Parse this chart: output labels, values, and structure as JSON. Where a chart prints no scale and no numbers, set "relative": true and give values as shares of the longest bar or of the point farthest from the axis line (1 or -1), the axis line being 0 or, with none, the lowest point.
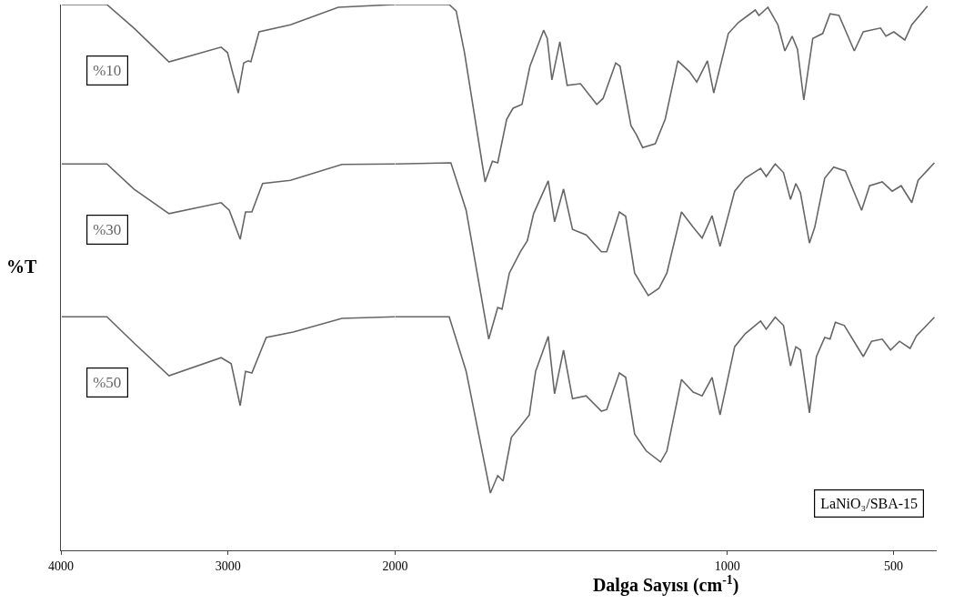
{
  "chart_data": [
    {
      "type": "line",
      "relative": true,
      "ylabel": "%T",
      "xlim": [
        4000,
        2000
      ],
      "xticks": [
        4000,
        3000,
        2000
      ],
      "marker": "none",
      "line_style": "solid",
      "series": [
        {
          "name": "%10",
          "color": "#666666",
          "x": [
            3995,
            3725,
            3563,
            3353,
            3041,
            3003,
            2970,
            2938,
            2906,
            2879,
            2863,
            2814,
            2626,
            2340,
            2000
          ],
          "values": [
            1.0,
            1.0,
            0.957,
            0.895,
            0.922,
            0.912,
            0.873,
            0.838,
            0.893,
            0.897,
            0.895,
            0.95,
            0.963,
            0.995,
            1.0
          ]
        },
        {
          "name": "%30",
          "color": "#666666",
          "x": [
            3995,
            3725,
            3563,
            3353,
            3041,
            2992,
            2927,
            2895,
            2857,
            2793,
            2626,
            2318,
            2000
          ],
          "values": [
            0.708,
            0.708,
            0.662,
            0.617,
            0.637,
            0.623,
            0.57,
            0.62,
            0.62,
            0.672,
            0.678,
            0.707,
            0.708
          ]
        },
        {
          "name": "%50",
          "color": "#666666",
          "x": [
            3995,
            3725,
            3563,
            3353,
            3041,
            2981,
            2927,
            2895,
            2857,
            2771,
            2609,
            2318,
            2000
          ],
          "values": [
            0.428,
            0.428,
            0.38,
            0.32,
            0.353,
            0.342,
            0.265,
            0.328,
            0.325,
            0.39,
            0.4,
            0.425,
            0.428
          ]
        }
      ]
    },
    {
      "type": "line",
      "relative": true,
      "xlabel": "Dalga Sayısı (cm$^{-1}$)",
      "xlim": [
        2000,
        370
      ],
      "xticks": [
        1000,
        500
      ],
      "marker": "none",
      "line_style": "solid",
      "annotations": [
        "LaNiO₃/SBA-15"
      ],
      "series": [
        {
          "color": "#666666",
          "x": [
            2000,
            1837,
            1816,
            1791,
            1729,
            1707,
            1691,
            1664,
            1645,
            1618,
            1594,
            1553,
            1542,
            1528,
            1504,
            1482,
            1442,
            1393,
            1374,
            1336,
            1323,
            1290,
            1274,
            1255,
            1217,
            1187,
            1149,
            1114,
            1092,
            1060,
            1041,
            997,
            967,
            916,
            905,
            878,
            848,
            827,
            805,
            789,
            770,
            743,
            713,
            691,
            664,
            618,
            591,
            539,
            523,
            499,
            466,
            445,
            398
          ],
          "values": [
            1.0,
            1.0,
            0.988,
            0.912,
            0.675,
            0.713,
            0.71,
            0.79,
            0.81,
            0.817,
            0.887,
            0.953,
            0.938,
            0.862,
            0.932,
            0.852,
            0.855,
            0.817,
            0.828,
            0.893,
            0.887,
            0.778,
            0.762,
            0.738,
            0.745,
            0.79,
            0.897,
            0.877,
            0.858,
            0.897,
            0.838,
            0.947,
            0.967,
            0.99,
            0.98,
            0.995,
            0.963,
            0.915,
            0.942,
            0.918,
            0.825,
            0.938,
            0.947,
            0.983,
            0.98,
            0.915,
            0.95,
            0.957,
            0.942,
            0.95,
            0.935,
            0.963,
            0.997
          ]
        },
        {
          "color": "#666666",
          "x": [
            2000,
            1832,
            1786,
            1718,
            1691,
            1678,
            1656,
            1623,
            1602,
            1583,
            1539,
            1520,
            1493,
            1466,
            1425,
            1379,
            1363,
            1325,
            1306,
            1279,
            1238,
            1206,
            1182,
            1138,
            1103,
            1076,
            1046,
            1022,
            978,
            946,
            900,
            883,
            856,
            831,
            810,
            794,
            780,
            753,
            737,
            707,
            680,
            645,
            596,
            572,
            534,
            504,
            477,
            445,
            426,
            377
          ],
          "values": [
            0.708,
            0.71,
            0.623,
            0.387,
            0.445,
            0.442,
            0.508,
            0.547,
            0.567,
            0.617,
            0.677,
            0.602,
            0.662,
            0.588,
            0.578,
            0.547,
            0.547,
            0.62,
            0.612,
            0.508,
            0.467,
            0.48,
            0.508,
            0.62,
            0.592,
            0.572,
            0.613,
            0.557,
            0.658,
            0.682,
            0.7,
            0.685,
            0.708,
            0.692,
            0.643,
            0.672,
            0.655,
            0.563,
            0.592,
            0.682,
            0.702,
            0.695,
            0.623,
            0.668,
            0.675,
            0.658,
            0.668,
            0.637,
            0.678,
            0.71
          ]
        },
        {
          "color": "#666666",
          "x": [
            2000,
            1837,
            1786,
            1713,
            1691,
            1675,
            1650,
            1623,
            1596,
            1577,
            1539,
            1520,
            1493,
            1466,
            1425,
            1379,
            1363,
            1325,
            1306,
            1279,
            1244,
            1201,
            1182,
            1138,
            1103,
            1076,
            1046,
            1022,
            978,
            946,
            900,
            883,
            856,
            831,
            810,
            794,
            780,
            753,
            732,
            707,
            691,
            675,
            648,
            591,
            566,
            534,
            509,
            482,
            450,
            431,
            377
          ],
          "values": [
            0.428,
            0.428,
            0.328,
            0.105,
            0.137,
            0.127,
            0.207,
            0.227,
            0.248,
            0.328,
            0.392,
            0.287,
            0.367,
            0.278,
            0.283,
            0.255,
            0.258,
            0.325,
            0.317,
            0.213,
            0.182,
            0.162,
            0.182,
            0.313,
            0.29,
            0.283,
            0.317,
            0.248,
            0.373,
            0.397,
            0.42,
            0.405,
            0.427,
            0.412,
            0.338,
            0.373,
            0.367,
            0.252,
            0.355,
            0.39,
            0.387,
            0.418,
            0.412,
            0.355,
            0.383,
            0.387,
            0.367,
            0.383,
            0.37,
            0.393,
            0.427
          ]
        }
      ]
    }
  ]
}
